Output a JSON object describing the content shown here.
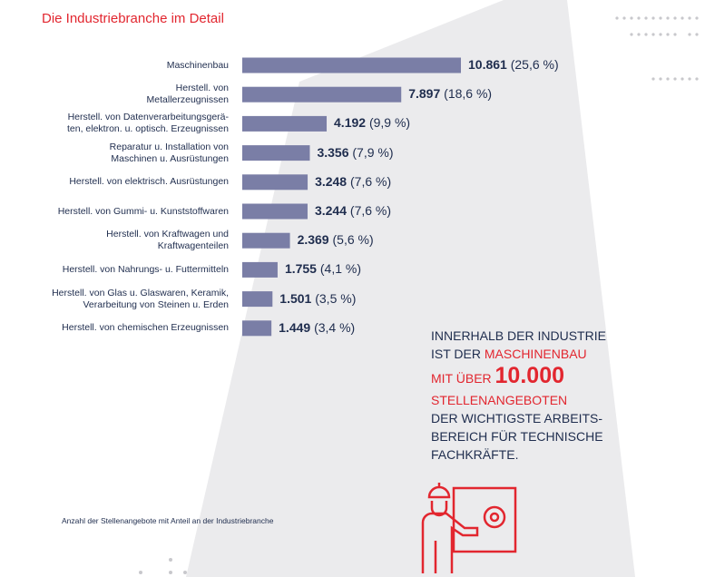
{
  "chart_data": {
    "type": "hbar",
    "title": "Die Industriebranche im Detail",
    "categories": [
      "Maschinenbau",
      "Herstell. von\nMetallerzeugnissen",
      "Herstell. von Datenverarbeitungsgerä-\nten, elektron. u. optisch. Erzeugnissen",
      "Reparatur u.  Installation von\nMaschinen u. Ausrüstungen",
      "Herstell. von elektrisch. Ausrüstungen",
      "Herstell. von Gummi- u. Kunststoffwaren",
      "Herstell. von Kraftwagen und\nKraftwagenteilen",
      "Herstell. von Nahrungs- u. Futtermitteln",
      "Herstell. von Glas u. Glaswaren, Keramik,\nVerarbeitung von Steinen u. Erden",
      "Herstell. von chemischen Erzeugnissen"
    ],
    "values": [
      10861,
      7897,
      4192,
      3356,
      3248,
      3244,
      2369,
      1755,
      1501,
      1449
    ],
    "value_labels": [
      "10.861",
      "7.897",
      "4.192",
      "3.356",
      "3.248",
      "3.244",
      "2.369",
      "1.755",
      "1.501",
      "1.449"
    ],
    "shares": [
      25.6,
      18.6,
      9.9,
      7.9,
      7.6,
      7.6,
      5.6,
      4.1,
      3.5,
      3.4
    ],
    "share_labels": [
      "(25,6 %)",
      "(18,6 %)",
      "(9,9 %)",
      "(7,9 %)",
      "(7,6 %)",
      "(7,6 %)",
      "(5,6 %)",
      "(4,1 %)",
      "(3,5 %)",
      "(3,4 %)"
    ],
    "color": "#7a7ea6",
    "footnote": "Anzahl der Stellenangebote mit Anteil an der Industriebranche"
  },
  "callout": {
    "line1": "INNERHALB DER INDUSTRIE",
    "line2a": "IST DER",
    "line2b": "MASCHINENBAU",
    "line3a": "MIT ÜBER",
    "line3b": "10.000",
    "line4": "STELLENANGEBOTEN",
    "line5": "DER WICHTIGSTE ARBEITS-",
    "line6": "BEREICH FÜR TECHNISCHE",
    "line7": "FACHKRÄFTE."
  }
}
